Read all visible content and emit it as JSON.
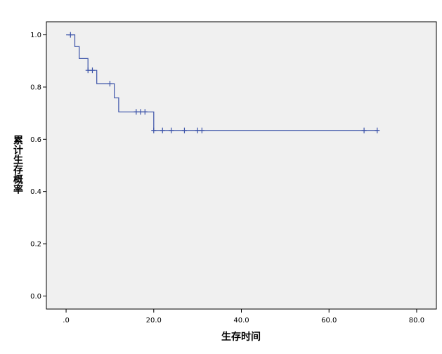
{
  "chart_data": {
    "type": "line",
    "xlabel": "生存时间",
    "ylabel": "累计生存概率",
    "xlim": [
      -4.5,
      84.5
    ],
    "ylim": [
      -0.05,
      1.05
    ],
    "x_ticks": [
      0,
      20,
      40,
      60,
      80
    ],
    "x_tick_labels": [
      ".0",
      "20.0",
      "40.0",
      "60.0",
      "80.0"
    ],
    "y_ticks": [
      0,
      0.2,
      0.4,
      0.6,
      0.8,
      1.0
    ],
    "y_tick_labels": [
      "0.0",
      "0.2",
      "0.4",
      "0.6",
      "0.8",
      "1.0"
    ],
    "series": [
      {
        "step": "post",
        "x": [
          0,
          2,
          3,
          5,
          7,
          11,
          12,
          20,
          71
        ],
        "y": [
          1.0,
          0.955,
          0.909,
          0.864,
          0.813,
          0.759,
          0.705,
          0.634,
          0.634
        ],
        "censored": [
          {
            "x": 1,
            "y": 1.0
          },
          {
            "x": 5,
            "y": 0.864
          },
          {
            "x": 6,
            "y": 0.864
          },
          {
            "x": 10,
            "y": 0.813
          },
          {
            "x": 16,
            "y": 0.705
          },
          {
            "x": 17,
            "y": 0.705
          },
          {
            "x": 18,
            "y": 0.705
          },
          {
            "x": 20,
            "y": 0.634
          },
          {
            "x": 22,
            "y": 0.634
          },
          {
            "x": 24,
            "y": 0.634
          },
          {
            "x": 27,
            "y": 0.634
          },
          {
            "x": 30,
            "y": 0.634
          },
          {
            "x": 31,
            "y": 0.634
          },
          {
            "x": 68,
            "y": 0.634
          },
          {
            "x": 71,
            "y": 0.634
          }
        ]
      }
    ],
    "grid": false,
    "legend": "none",
    "colors": {
      "plot_background": "#f0f0f0",
      "line": "#3a52a8",
      "frame": "#000000"
    }
  }
}
